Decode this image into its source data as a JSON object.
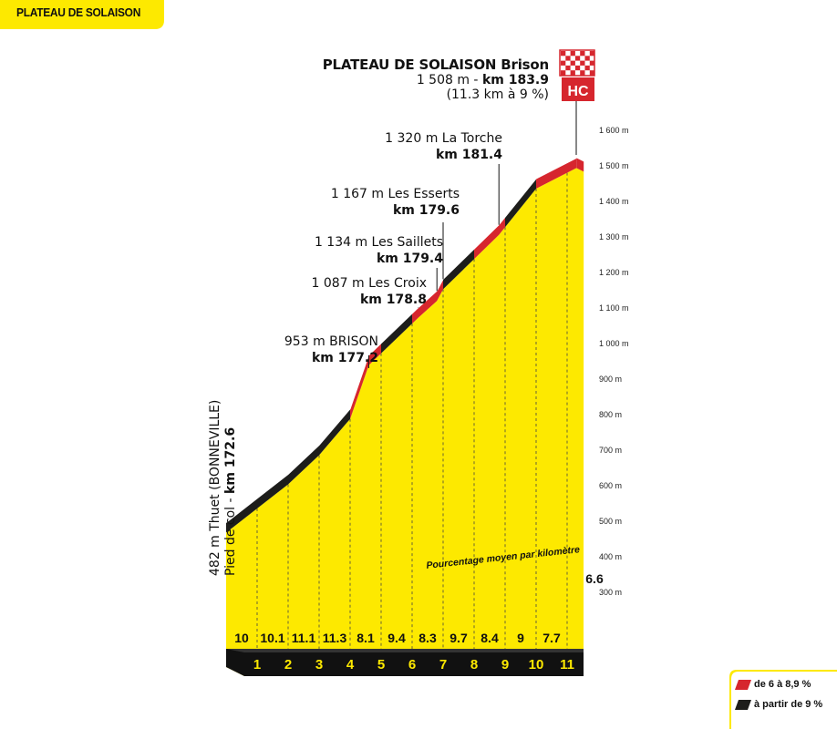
{
  "page_title": "PLATEAU DE SOLAISON",
  "summit": {
    "name": "PLATEAU DE SOLAISON Brison",
    "alt_prefix": "1 508 m - ",
    "km": "km 183.9",
    "climb": "(11.3 km à 9 %)",
    "category": "HC"
  },
  "start": {
    "line1": "482 m Thuet (BONNEVILLE)",
    "line2_prefix": "Pied de col - ",
    "line2_km": "km 172.6"
  },
  "checkpoints": [
    {
      "alt": "953 m BRISON",
      "km": "km 177.2"
    },
    {
      "alt": "1 087 m Les Croix",
      "km": "km 178.8"
    },
    {
      "alt": "1 134 m Les Saillets",
      "km": "km 179.4"
    },
    {
      "alt": "1 167 m Les Esserts",
      "km": "km 179.6"
    },
    {
      "alt": "1 320 m La Torche",
      "km": "km 181.4"
    }
  ],
  "y_axis_labels": [
    "300 m",
    "400 m",
    "500 m",
    "600 m",
    "700 m",
    "800 m",
    "900 m",
    "1 000 m",
    "1 100 m",
    "1 200 m",
    "1 300 m",
    "1 400 m",
    "1 500 m",
    "1 600 m"
  ],
  "km_markers": [
    "1",
    "2",
    "3",
    "4",
    "5",
    "6",
    "7",
    "8",
    "9",
    "10",
    "11"
  ],
  "gradients": [
    "10",
    "10.1",
    "11.1",
    "11.3",
    "8.1",
    "9.4",
    "8.3",
    "9.7",
    "8.4",
    "9",
    "7.7",
    "6.6"
  ],
  "gradient_caption": "Pourcentage moyen par kilomètre",
  "legend": [
    {
      "label": "de 6 à 8,9 %",
      "color": "#d6262e"
    },
    {
      "label": "à partir de 9 %",
      "color": "#1d1d1b"
    }
  ],
  "chart_data": {
    "type": "area",
    "x_unit": "km",
    "y_unit": "m",
    "ylim": [
      300,
      1600
    ],
    "profile": [
      {
        "x": 0,
        "y": 482
      },
      {
        "x": 1,
        "y": 550
      },
      {
        "x": 2,
        "y": 618
      },
      {
        "x": 3,
        "y": 700
      },
      {
        "x": 4,
        "y": 802
      },
      {
        "x": 4.6,
        "y": 953
      },
      {
        "x": 6.2,
        "y": 1087
      },
      {
        "x": 6.8,
        "y": 1134
      },
      {
        "x": 7.0,
        "y": 1167
      },
      {
        "x": 8.8,
        "y": 1320
      },
      {
        "x": 10,
        "y": 1450
      },
      {
        "x": 11.3,
        "y": 1508
      }
    ],
    "segments": [
      {
        "from": 0,
        "to": 1,
        "class": "black"
      },
      {
        "from": 1,
        "to": 2,
        "class": "black"
      },
      {
        "from": 2,
        "to": 3,
        "class": "black"
      },
      {
        "from": 3,
        "to": 4,
        "class": "black"
      },
      {
        "from": 4,
        "to": 5,
        "class": "red"
      },
      {
        "from": 5,
        "to": 6,
        "class": "black"
      },
      {
        "from": 6,
        "to": 7,
        "class": "red"
      },
      {
        "from": 7,
        "to": 8,
        "class": "black"
      },
      {
        "from": 8,
        "to": 9,
        "class": "red"
      },
      {
        "from": 9,
        "to": 10,
        "class": "black"
      },
      {
        "from": 10,
        "to": 11.3,
        "class": "red"
      }
    ]
  }
}
